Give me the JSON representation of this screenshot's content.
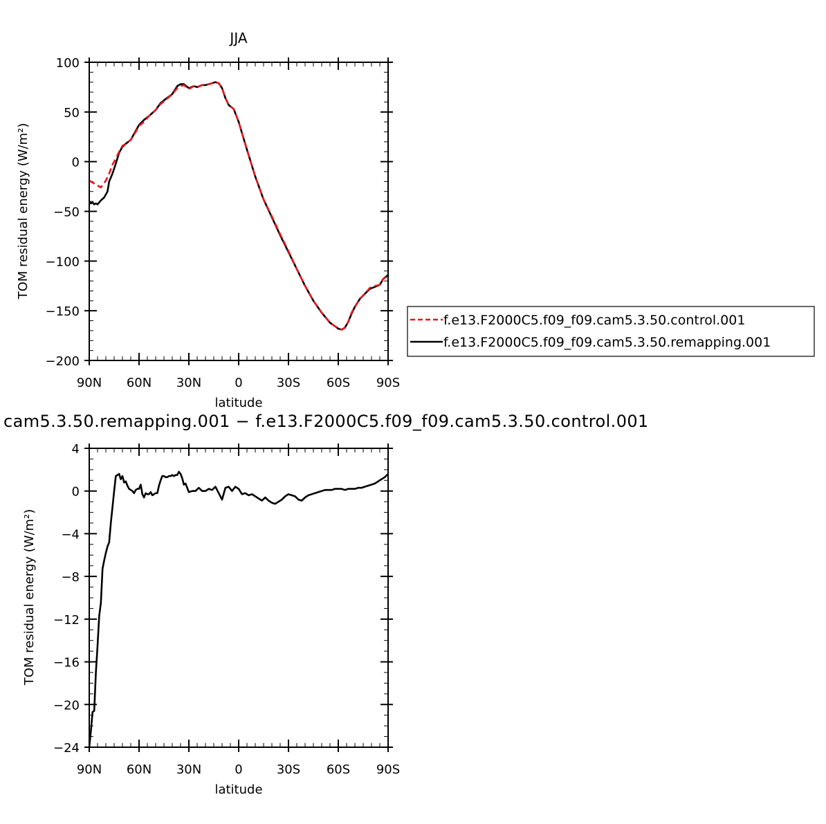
{
  "chart_data": [
    {
      "type": "line",
      "title": "JJA",
      "xlabel": "latitude",
      "ylabel": "TOM residual energy (W/m²)",
      "xlim": [
        90,
        -90
      ],
      "ylim": [
        -200,
        100
      ],
      "x_ticks": [
        90,
        60,
        30,
        0,
        -30,
        -60,
        -90
      ],
      "x_tick_labels": [
        "90N",
        "60N",
        "30N",
        "0",
        "30S",
        "60S",
        "90S"
      ],
      "y_ticks": [
        100,
        50,
        0,
        -50,
        -100,
        -150,
        -200
      ],
      "y_tick_labels": [
        "100",
        "50",
        "0",
        "−50",
        "−100",
        "−150",
        "−200"
      ],
      "legend_position": "right",
      "series": [
        {
          "name": "f.e13.F2000C5.f09_f09.cam5.3.50.control.001",
          "color": "#e8141c",
          "dash": "dashed",
          "x": [
            90,
            88,
            85,
            83,
            80,
            78,
            76,
            74,
            72,
            70,
            68,
            65,
            62,
            60,
            57,
            54,
            50,
            47,
            44,
            40,
            37,
            35,
            33,
            30,
            27,
            25,
            22,
            20,
            18,
            16,
            14,
            12,
            10,
            8,
            6,
            3,
            0,
            -5,
            -10,
            -15,
            -20,
            -25,
            -30,
            -35,
            -40,
            -45,
            -50,
            -55,
            -60,
            -62,
            -64,
            -66,
            -68,
            -70,
            -73,
            -76,
            -79,
            -82,
            -85,
            -87,
            -90
          ],
          "y": [
            -19,
            -21,
            -24,
            -26,
            -19,
            -12,
            -3,
            3,
            10,
            16,
            18,
            22,
            30,
            36,
            40,
            46,
            52,
            58,
            62,
            68,
            74,
            76,
            77,
            73,
            76,
            75,
            77,
            77,
            78,
            79,
            80,
            79,
            74,
            64,
            57,
            53,
            40,
            12,
            -15,
            -38,
            -55,
            -73,
            -90,
            -108,
            -125,
            -140,
            -152,
            -162,
            -168,
            -169,
            -167,
            -161,
            -152,
            -146,
            -138,
            -133,
            -127,
            -125,
            -124,
            -118,
            -115
          ]
        },
        {
          "name": "f.e13.F2000C5.f09_f09.cam5.3.50.remapping.001",
          "color": "#000000",
          "dash": "solid",
          "x": [
            90,
            89,
            88,
            87,
            86,
            85,
            83,
            81,
            79,
            78,
            76,
            74,
            72,
            70,
            68,
            65,
            62,
            60,
            57,
            54,
            50,
            47,
            44,
            40,
            37,
            35,
            33,
            30,
            27,
            25,
            22,
            20,
            18,
            16,
            14,
            12,
            10,
            8,
            6,
            3,
            0,
            -5,
            -10,
            -15,
            -20,
            -25,
            -30,
            -35,
            -40,
            -45,
            -50,
            -55,
            -60,
            -62,
            -64,
            -66,
            -68,
            -70,
            -73,
            -76,
            -79,
            -82,
            -85,
            -87,
            -90
          ],
          "y": [
            -40,
            -42,
            -41,
            -43,
            -42,
            -43,
            -39,
            -36,
            -30,
            -20,
            -12,
            -2,
            9,
            15,
            18,
            22,
            31,
            37,
            42,
            46,
            52,
            59,
            63,
            68,
            76,
            78,
            78,
            74,
            76,
            75,
            77,
            77,
            78,
            79,
            80,
            79,
            74,
            64,
            57,
            53,
            40,
            12,
            -15,
            -38,
            -56,
            -74,
            -91,
            -108,
            -125,
            -140,
            -152,
            -162,
            -168,
            -169,
            -167,
            -161,
            -153,
            -146,
            -138,
            -133,
            -128,
            -126,
            -124,
            -118,
            -114
          ]
        }
      ]
    },
    {
      "type": "line",
      "title": "cam5.3.50.remapping.001 − f.e13.F2000C5.f09_f09.cam5.3.50.control.001",
      "xlabel": "latitude",
      "ylabel": "TOM residual energy (W/m²)",
      "xlim": [
        90,
        -90
      ],
      "ylim": [
        -24,
        4
      ],
      "x_ticks": [
        90,
        60,
        30,
        0,
        -30,
        -60,
        -90
      ],
      "x_tick_labels": [
        "90N",
        "60N",
        "30N",
        "0",
        "30S",
        "60S",
        "90S"
      ],
      "y_ticks": [
        4,
        0,
        -4,
        -8,
        -12,
        -16,
        -20,
        -24
      ],
      "y_tick_labels": [
        "4",
        "0",
        "−4",
        "−8",
        "−12",
        "−16",
        "−20",
        "−24"
      ],
      "series": [
        {
          "color": "#000000",
          "dash": "solid",
          "x": [
            90,
            89,
            88,
            87,
            86,
            85,
            84,
            83,
            82,
            81,
            80,
            79,
            78,
            77,
            76,
            75,
            74,
            73,
            72,
            71,
            70,
            69,
            68,
            67,
            66,
            65,
            64,
            63,
            62,
            61,
            60,
            59,
            58,
            57,
            56,
            55,
            54,
            53,
            52,
            51,
            50,
            49,
            48,
            47,
            46,
            45,
            44,
            43,
            42,
            41,
            40,
            39,
            38,
            37,
            36,
            35,
            34,
            33,
            32,
            31,
            30,
            28,
            26,
            24,
            22,
            20,
            18,
            16,
            14,
            12,
            10,
            8,
            6,
            4,
            2,
            0,
            -2,
            -4,
            -6,
            -8,
            -10,
            -12,
            -14,
            -16,
            -18,
            -20,
            -22,
            -24,
            -26,
            -28,
            -30,
            -32,
            -34,
            -36,
            -38,
            -40,
            -42,
            -44,
            -46,
            -48,
            -50,
            -52,
            -54,
            -56,
            -58,
            -60,
            -62,
            -64,
            -66,
            -68,
            -70,
            -72,
            -74,
            -76,
            -78,
            -80,
            -82,
            -84,
            -86,
            -88,
            -90
          ],
          "y": [
            -24,
            -22.5,
            -20.7,
            -20.6,
            -17,
            -14.5,
            -11.7,
            -10.5,
            -7.3,
            -6.5,
            -5.8,
            -5.2,
            -4.8,
            -3,
            -1.5,
            0,
            1.4,
            1.5,
            1.6,
            1.1,
            1.4,
            0.8,
            0.9,
            0.5,
            0.2,
            0.1,
            0,
            -0.2,
            0.1,
            0.2,
            0.2,
            0.6,
            -0.3,
            -0.6,
            -0.2,
            -0.3,
            -0.3,
            -0.1,
            -0.4,
            -0.3,
            -0.2,
            -0.2,
            0.5,
            1,
            1.4,
            1.4,
            1.3,
            1.3,
            1.4,
            1.4,
            1.5,
            1.4,
            1.5,
            1.5,
            1.8,
            1.6,
            1.2,
            0.6,
            0.7,
            0.3,
            -0.1,
            0,
            0,
            0.3,
            0,
            0,
            0.2,
            0.1,
            0.4,
            -0.2,
            -0.8,
            0.3,
            0.4,
            0,
            0.4,
            0.2,
            -0.3,
            -0.2,
            -0.4,
            -0.3,
            -0.5,
            -0.7,
            -0.9,
            -0.6,
            -0.9,
            -1.1,
            -1.2,
            -1,
            -0.8,
            -0.5,
            -0.3,
            -0.4,
            -0.5,
            -0.8,
            -0.9,
            -0.6,
            -0.4,
            -0.3,
            -0.2,
            -0.1,
            0,
            0.1,
            0.1,
            0.1,
            0.2,
            0.2,
            0.2,
            0.1,
            0.2,
            0.2,
            0.2,
            0.3,
            0.3,
            0.4,
            0.5,
            0.6,
            0.7,
            0.9,
            1.1,
            1.3,
            1.6
          ]
        }
      ]
    }
  ]
}
